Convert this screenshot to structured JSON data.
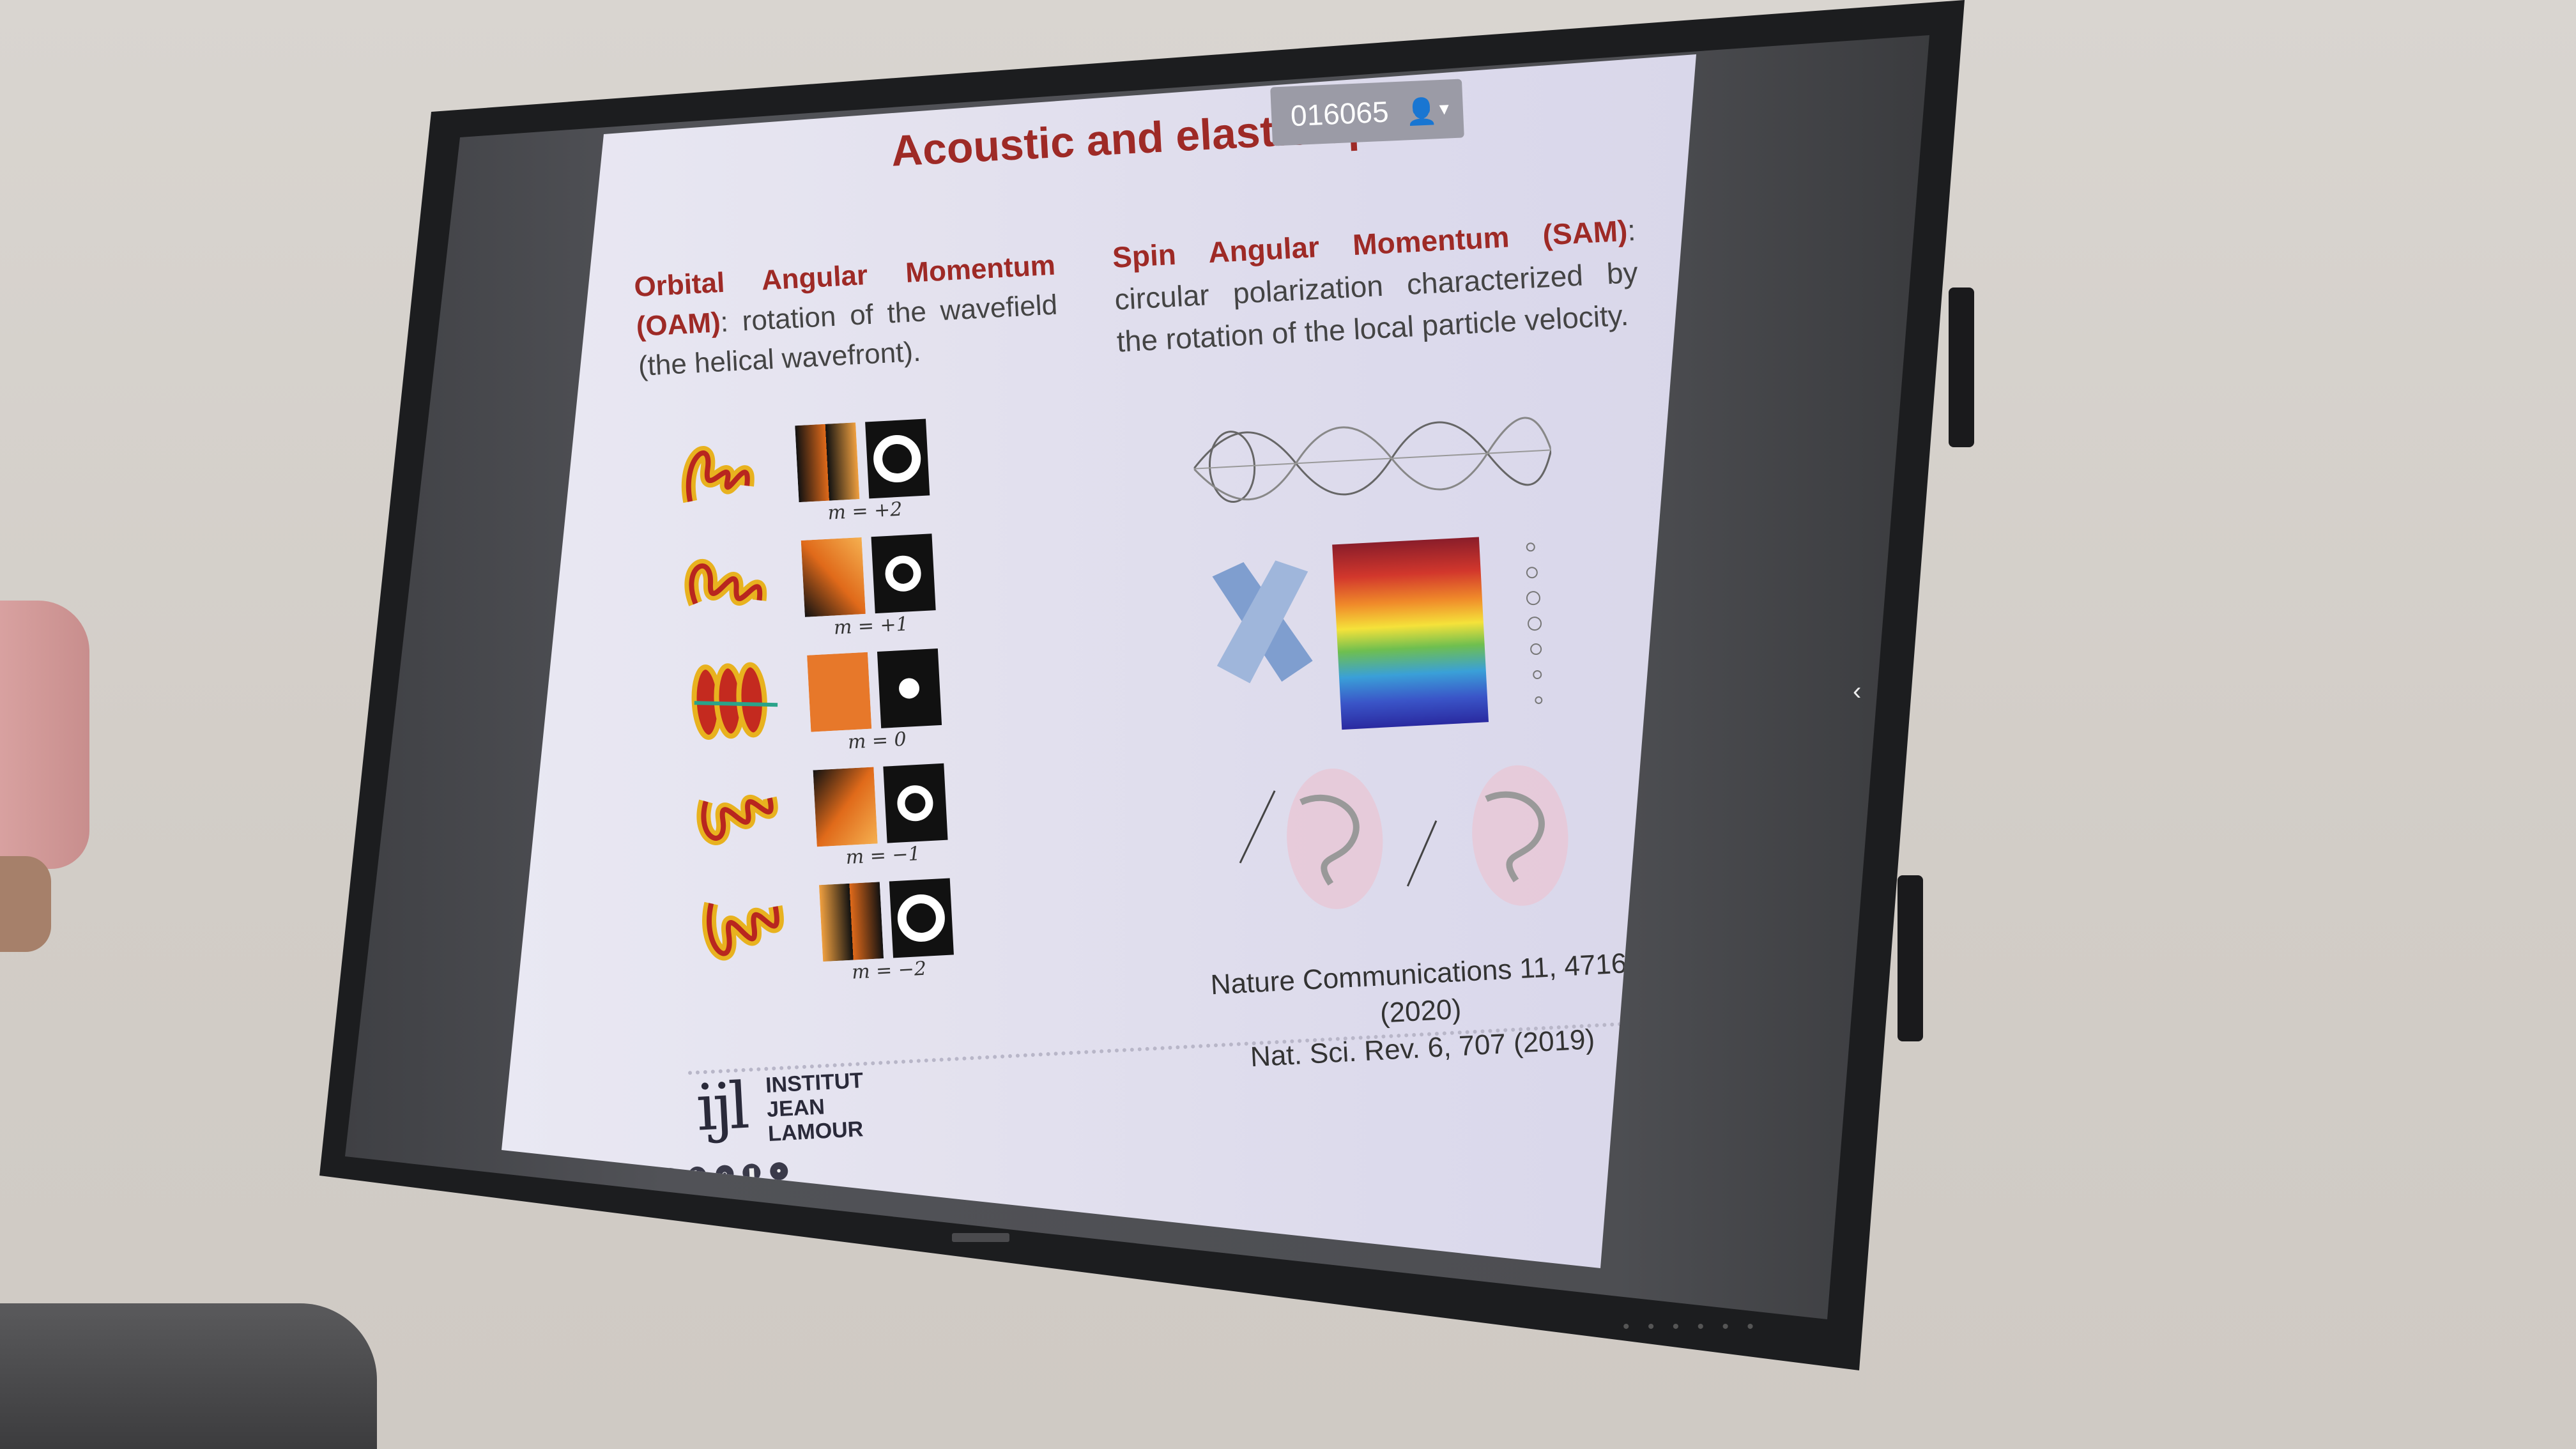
{
  "overlay": {
    "session_code": "016065",
    "user_icon": "person-icon",
    "dropdown_icon": "caret-down-icon"
  },
  "slide": {
    "title": "Acoustic and elastic spins",
    "oam": {
      "term": "Orbital Angular Momentum (OAM)",
      "description": "rotation of the wavefield (the helical wavefront)."
    },
    "sam": {
      "term": "Spin Angular Momentum (SAM)",
      "description": "circular polarization characterized by the rotation of the local particle velocity."
    },
    "modes": [
      {
        "label": "m = +2"
      },
      {
        "label": "m = +1"
      },
      {
        "label": "m = 0"
      },
      {
        "label": "m = −1"
      },
      {
        "label": "m = −2"
      }
    ],
    "references": [
      "Nature Communications 11, 4716 (2020)",
      "Nat. Sci. Rev. 6, 707 (2019)"
    ],
    "institute": {
      "mark": "ijl",
      "line1": "INSTITUT",
      "line2": "JEAN LAMOUR"
    }
  },
  "colors": {
    "title_red": "#9e2a26",
    "teal": "#1f6b70",
    "slide_bg": "#e3e1ee",
    "badge_bg": "#9b9ba6"
  }
}
